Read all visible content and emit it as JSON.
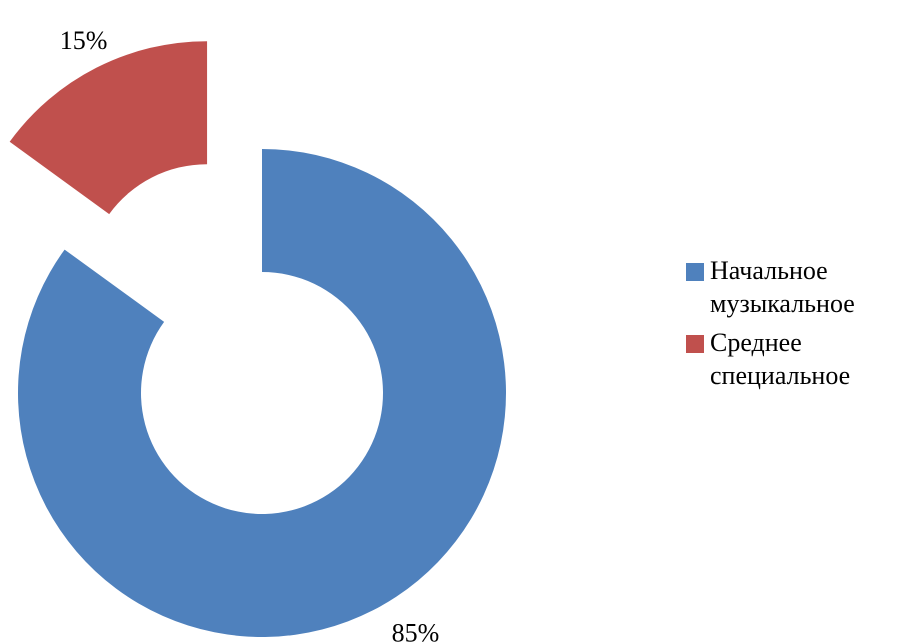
{
  "chart_data": {
    "type": "donut",
    "categories": [
      "Начальное музыкальное",
      "Среднее специальное"
    ],
    "series": [
      {
        "values": [
          85,
          15
        ],
        "value_labels": [
          "85%",
          "15%"
        ],
        "colors": [
          "#4f81bd",
          "#c0504d"
        ]
      }
    ],
    "legend": "right"
  }
}
